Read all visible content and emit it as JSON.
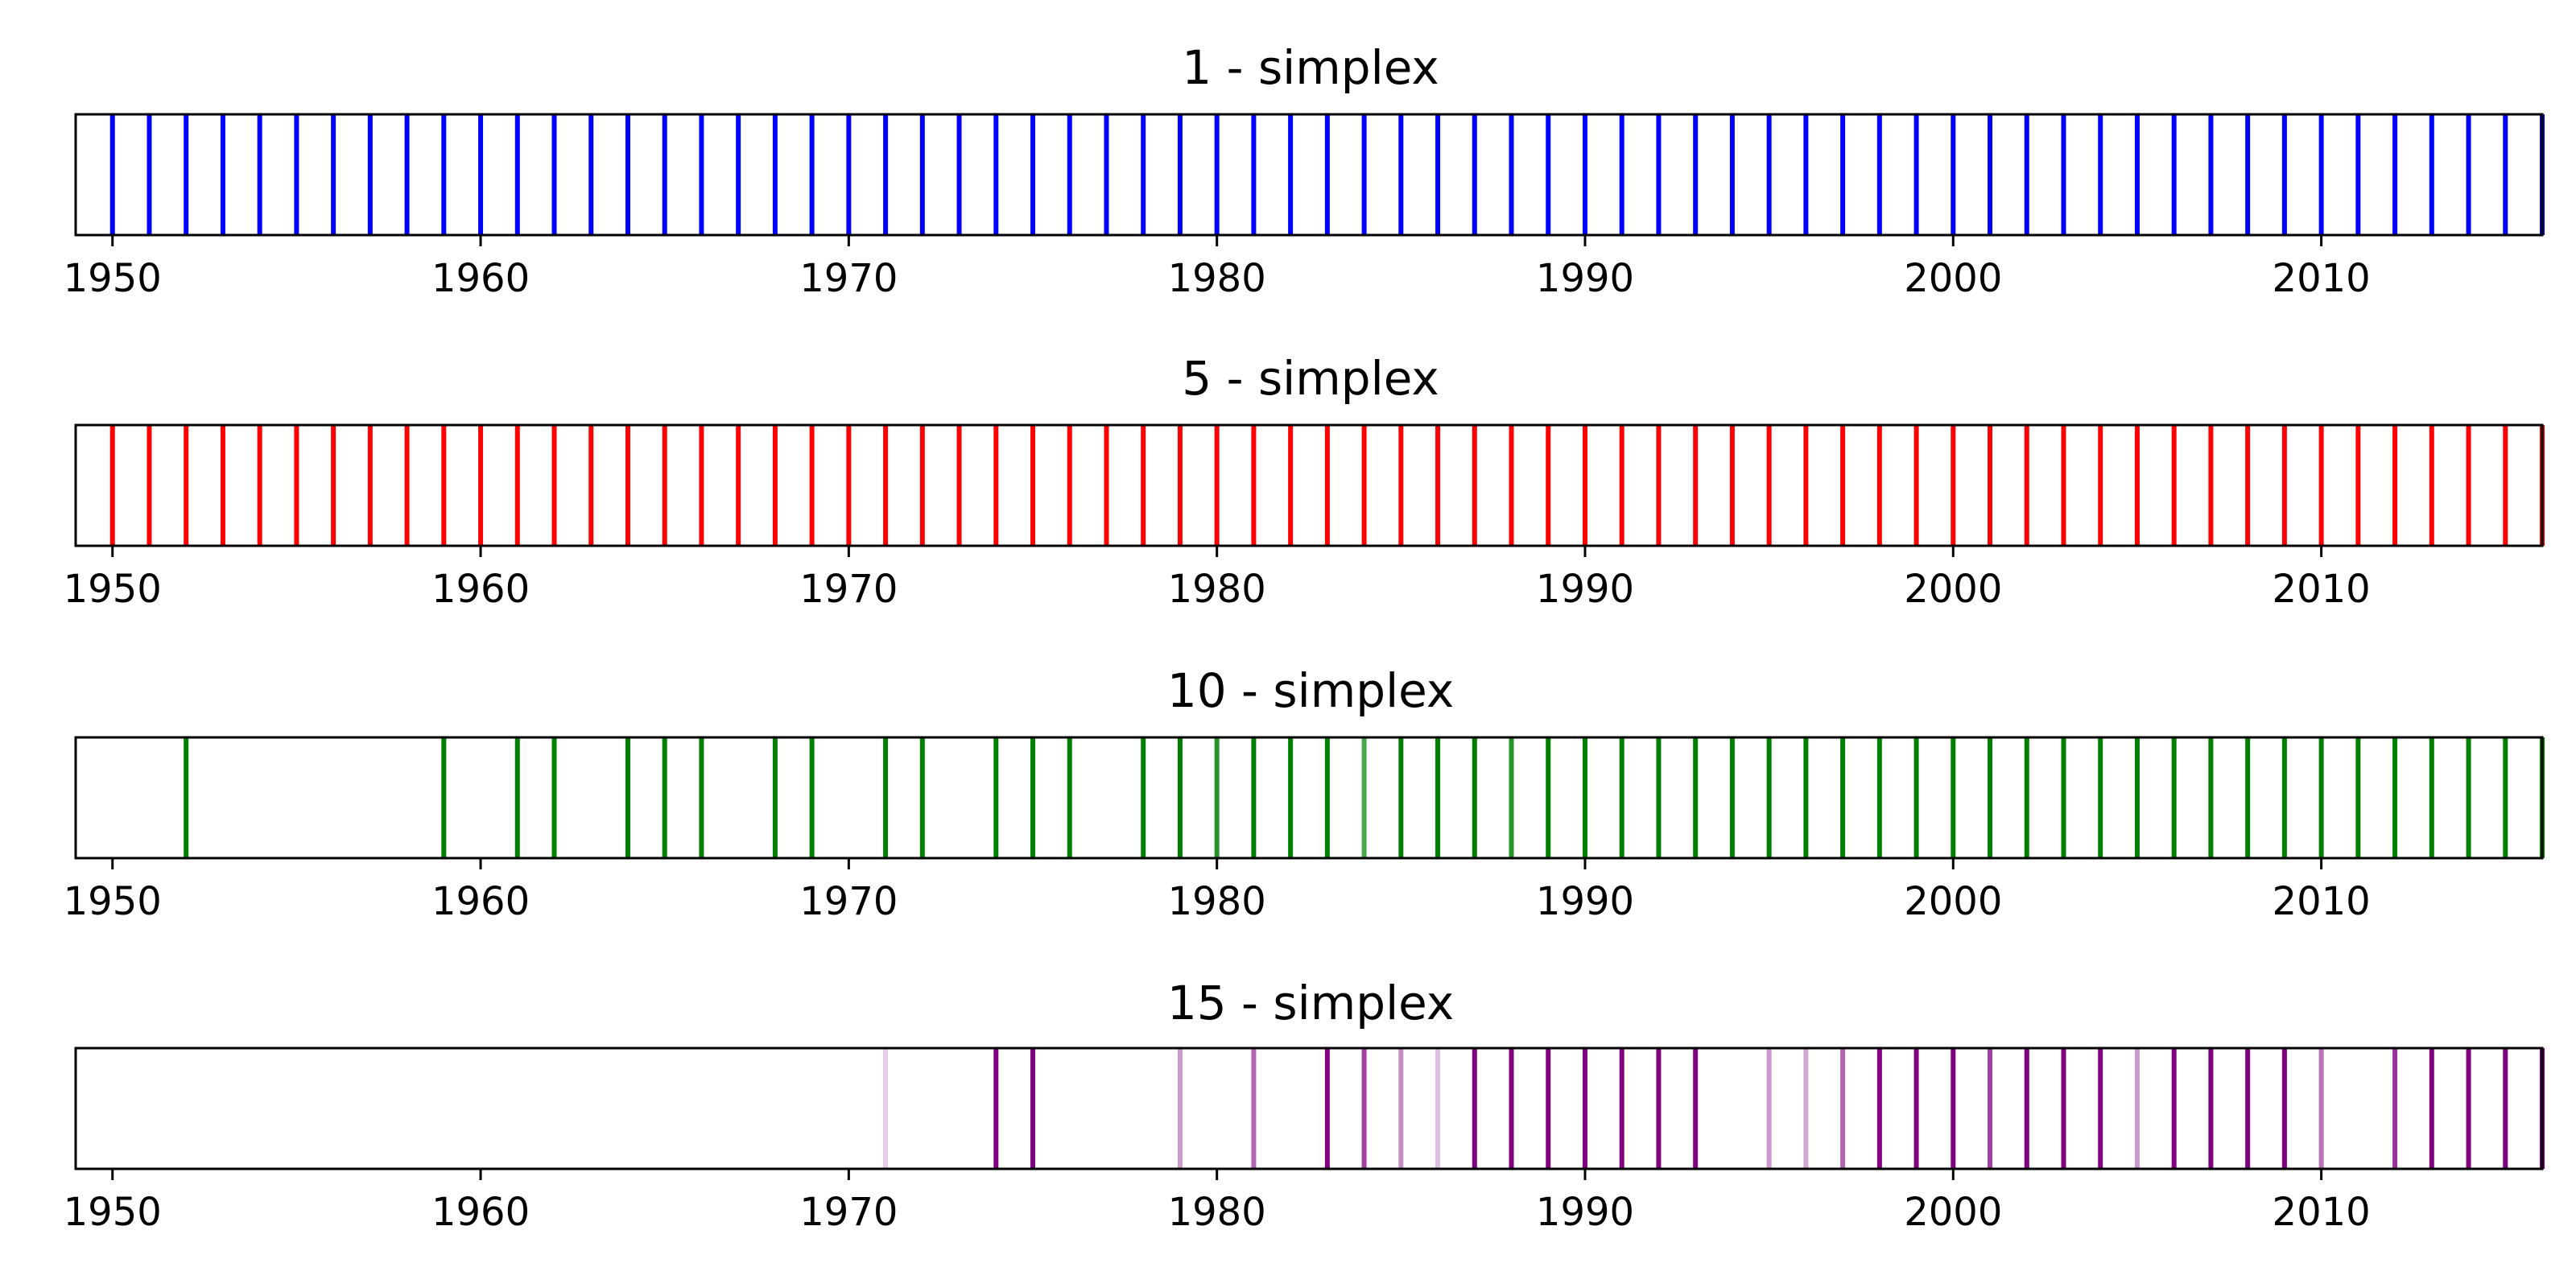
{
  "chart_data": [
    {
      "type": "event-strip",
      "title": "1 - simplex",
      "color": "#0000ff",
      "xlim": [
        1949,
        2016
      ],
      "xticks": [
        "1950",
        "1960",
        "1970",
        "1980",
        "1990",
        "2000",
        "2010"
      ],
      "events": [
        {
          "year": 1950,
          "alpha": 1
        },
        {
          "year": 1951,
          "alpha": 1
        },
        {
          "year": 1952,
          "alpha": 1
        },
        {
          "year": 1953,
          "alpha": 1
        },
        {
          "year": 1954,
          "alpha": 1
        },
        {
          "year": 1955,
          "alpha": 1
        },
        {
          "year": 1956,
          "alpha": 1
        },
        {
          "year": 1957,
          "alpha": 1
        },
        {
          "year": 1958,
          "alpha": 1
        },
        {
          "year": 1959,
          "alpha": 1
        },
        {
          "year": 1960,
          "alpha": 1
        },
        {
          "year": 1961,
          "alpha": 1
        },
        {
          "year": 1962,
          "alpha": 1
        },
        {
          "year": 1963,
          "alpha": 1
        },
        {
          "year": 1964,
          "alpha": 1
        },
        {
          "year": 1965,
          "alpha": 1
        },
        {
          "year": 1966,
          "alpha": 1
        },
        {
          "year": 1967,
          "alpha": 1
        },
        {
          "year": 1968,
          "alpha": 1
        },
        {
          "year": 1969,
          "alpha": 1
        },
        {
          "year": 1970,
          "alpha": 1
        },
        {
          "year": 1971,
          "alpha": 1
        },
        {
          "year": 1972,
          "alpha": 1
        },
        {
          "year": 1973,
          "alpha": 1
        },
        {
          "year": 1974,
          "alpha": 1
        },
        {
          "year": 1975,
          "alpha": 1
        },
        {
          "year": 1976,
          "alpha": 1
        },
        {
          "year": 1977,
          "alpha": 1
        },
        {
          "year": 1978,
          "alpha": 1
        },
        {
          "year": 1979,
          "alpha": 1
        },
        {
          "year": 1980,
          "alpha": 1
        },
        {
          "year": 1981,
          "alpha": 1
        },
        {
          "year": 1982,
          "alpha": 1
        },
        {
          "year": 1983,
          "alpha": 1
        },
        {
          "year": 1984,
          "alpha": 1
        },
        {
          "year": 1985,
          "alpha": 1
        },
        {
          "year": 1986,
          "alpha": 1
        },
        {
          "year": 1987,
          "alpha": 1
        },
        {
          "year": 1988,
          "alpha": 1
        },
        {
          "year": 1989,
          "alpha": 1
        },
        {
          "year": 1990,
          "alpha": 1
        },
        {
          "year": 1991,
          "alpha": 1
        },
        {
          "year": 1992,
          "alpha": 1
        },
        {
          "year": 1993,
          "alpha": 1
        },
        {
          "year": 1994,
          "alpha": 1
        },
        {
          "year": 1995,
          "alpha": 1
        },
        {
          "year": 1996,
          "alpha": 1
        },
        {
          "year": 1997,
          "alpha": 1
        },
        {
          "year": 1998,
          "alpha": 1
        },
        {
          "year": 1999,
          "alpha": 1
        },
        {
          "year": 2000,
          "alpha": 1
        },
        {
          "year": 2001,
          "alpha": 1
        },
        {
          "year": 2002,
          "alpha": 1
        },
        {
          "year": 2003,
          "alpha": 1
        },
        {
          "year": 2004,
          "alpha": 1
        },
        {
          "year": 2005,
          "alpha": 1
        },
        {
          "year": 2006,
          "alpha": 1
        },
        {
          "year": 2007,
          "alpha": 1
        },
        {
          "year": 2008,
          "alpha": 1
        },
        {
          "year": 2009,
          "alpha": 1
        },
        {
          "year": 2010,
          "alpha": 1
        },
        {
          "year": 2011,
          "alpha": 1
        },
        {
          "year": 2012,
          "alpha": 1
        },
        {
          "year": 2013,
          "alpha": 1
        },
        {
          "year": 2014,
          "alpha": 1
        },
        {
          "year": 2015,
          "alpha": 1
        },
        {
          "year": 2016,
          "alpha": 1
        }
      ]
    },
    {
      "type": "event-strip",
      "title": "5 - simplex",
      "color": "#ff0000",
      "xlim": [
        1949,
        2016
      ],
      "xticks": [
        "1950",
        "1960",
        "1970",
        "1980",
        "1990",
        "2000",
        "2010"
      ],
      "events": [
        {
          "year": 1950,
          "alpha": 1
        },
        {
          "year": 1951,
          "alpha": 1
        },
        {
          "year": 1952,
          "alpha": 1
        },
        {
          "year": 1953,
          "alpha": 1
        },
        {
          "year": 1954,
          "alpha": 1
        },
        {
          "year": 1955,
          "alpha": 1
        },
        {
          "year": 1956,
          "alpha": 1
        },
        {
          "year": 1957,
          "alpha": 1
        },
        {
          "year": 1958,
          "alpha": 1
        },
        {
          "year": 1959,
          "alpha": 1
        },
        {
          "year": 1960,
          "alpha": 1
        },
        {
          "year": 1961,
          "alpha": 1
        },
        {
          "year": 1962,
          "alpha": 1
        },
        {
          "year": 1963,
          "alpha": 1
        },
        {
          "year": 1964,
          "alpha": 1
        },
        {
          "year": 1965,
          "alpha": 1
        },
        {
          "year": 1966,
          "alpha": 1
        },
        {
          "year": 1967,
          "alpha": 1
        },
        {
          "year": 1968,
          "alpha": 1
        },
        {
          "year": 1969,
          "alpha": 1
        },
        {
          "year": 1970,
          "alpha": 1
        },
        {
          "year": 1971,
          "alpha": 1
        },
        {
          "year": 1972,
          "alpha": 1
        },
        {
          "year": 1973,
          "alpha": 1
        },
        {
          "year": 1974,
          "alpha": 1
        },
        {
          "year": 1975,
          "alpha": 1
        },
        {
          "year": 1976,
          "alpha": 1
        },
        {
          "year": 1977,
          "alpha": 1
        },
        {
          "year": 1978,
          "alpha": 1
        },
        {
          "year": 1979,
          "alpha": 1
        },
        {
          "year": 1980,
          "alpha": 1
        },
        {
          "year": 1981,
          "alpha": 1
        },
        {
          "year": 1982,
          "alpha": 1
        },
        {
          "year": 1983,
          "alpha": 1
        },
        {
          "year": 1984,
          "alpha": 1
        },
        {
          "year": 1985,
          "alpha": 1
        },
        {
          "year": 1986,
          "alpha": 1
        },
        {
          "year": 1987,
          "alpha": 1
        },
        {
          "year": 1988,
          "alpha": 1
        },
        {
          "year": 1989,
          "alpha": 1
        },
        {
          "year": 1990,
          "alpha": 1
        },
        {
          "year": 1991,
          "alpha": 1
        },
        {
          "year": 1992,
          "alpha": 1
        },
        {
          "year": 1993,
          "alpha": 1
        },
        {
          "year": 1994,
          "alpha": 1
        },
        {
          "year": 1995,
          "alpha": 1
        },
        {
          "year": 1996,
          "alpha": 1
        },
        {
          "year": 1997,
          "alpha": 1
        },
        {
          "year": 1998,
          "alpha": 1
        },
        {
          "year": 1999,
          "alpha": 1
        },
        {
          "year": 2000,
          "alpha": 1
        },
        {
          "year": 2001,
          "alpha": 1
        },
        {
          "year": 2002,
          "alpha": 1
        },
        {
          "year": 2003,
          "alpha": 1
        },
        {
          "year": 2004,
          "alpha": 1
        },
        {
          "year": 2005,
          "alpha": 1
        },
        {
          "year": 2006,
          "alpha": 1
        },
        {
          "year": 2007,
          "alpha": 1
        },
        {
          "year": 2008,
          "alpha": 1
        },
        {
          "year": 2009,
          "alpha": 1
        },
        {
          "year": 2010,
          "alpha": 1
        },
        {
          "year": 2011,
          "alpha": 1
        },
        {
          "year": 2012,
          "alpha": 1
        },
        {
          "year": 2013,
          "alpha": 1
        },
        {
          "year": 2014,
          "alpha": 1
        },
        {
          "year": 2015,
          "alpha": 1
        },
        {
          "year": 2016,
          "alpha": 1
        }
      ]
    },
    {
      "type": "event-strip",
      "title": "10 - simplex",
      "color": "#008000",
      "xlim": [
        1949,
        2016
      ],
      "xticks": [
        "1950",
        "1960",
        "1970",
        "1980",
        "1990",
        "2000",
        "2010"
      ],
      "events": [
        {
          "year": 1952,
          "alpha": 1
        },
        {
          "year": 1959,
          "alpha": 1
        },
        {
          "year": 1961,
          "alpha": 1
        },
        {
          "year": 1962,
          "alpha": 1
        },
        {
          "year": 1964,
          "alpha": 1
        },
        {
          "year": 1965,
          "alpha": 1
        },
        {
          "year": 1966,
          "alpha": 1
        },
        {
          "year": 1968,
          "alpha": 1
        },
        {
          "year": 1969,
          "alpha": 1
        },
        {
          "year": 1971,
          "alpha": 1
        },
        {
          "year": 1972,
          "alpha": 1
        },
        {
          "year": 1974,
          "alpha": 1
        },
        {
          "year": 1975,
          "alpha": 1
        },
        {
          "year": 1976,
          "alpha": 1
        },
        {
          "year": 1978,
          "alpha": 1
        },
        {
          "year": 1979,
          "alpha": 1
        },
        {
          "year": 1980,
          "alpha": 0.85
        },
        {
          "year": 1981,
          "alpha": 1
        },
        {
          "year": 1982,
          "alpha": 1
        },
        {
          "year": 1983,
          "alpha": 1
        },
        {
          "year": 1984,
          "alpha": 0.7
        },
        {
          "year": 1985,
          "alpha": 1
        },
        {
          "year": 1986,
          "alpha": 1
        },
        {
          "year": 1987,
          "alpha": 1
        },
        {
          "year": 1988,
          "alpha": 0.85
        },
        {
          "year": 1989,
          "alpha": 1
        },
        {
          "year": 1990,
          "alpha": 1
        },
        {
          "year": 1991,
          "alpha": 1
        },
        {
          "year": 1992,
          "alpha": 1
        },
        {
          "year": 1993,
          "alpha": 1
        },
        {
          "year": 1994,
          "alpha": 1
        },
        {
          "year": 1995,
          "alpha": 1
        },
        {
          "year": 1996,
          "alpha": 1
        },
        {
          "year": 1997,
          "alpha": 1
        },
        {
          "year": 1998,
          "alpha": 1
        },
        {
          "year": 1999,
          "alpha": 1
        },
        {
          "year": 2000,
          "alpha": 1
        },
        {
          "year": 2001,
          "alpha": 1
        },
        {
          "year": 2002,
          "alpha": 1
        },
        {
          "year": 2003,
          "alpha": 1
        },
        {
          "year": 2004,
          "alpha": 1
        },
        {
          "year": 2005,
          "alpha": 1
        },
        {
          "year": 2006,
          "alpha": 1
        },
        {
          "year": 2007,
          "alpha": 1
        },
        {
          "year": 2008,
          "alpha": 1
        },
        {
          "year": 2009,
          "alpha": 1
        },
        {
          "year": 2010,
          "alpha": 1
        },
        {
          "year": 2011,
          "alpha": 1
        },
        {
          "year": 2012,
          "alpha": 1
        },
        {
          "year": 2013,
          "alpha": 1
        },
        {
          "year": 2014,
          "alpha": 1
        },
        {
          "year": 2015,
          "alpha": 1
        },
        {
          "year": 2016,
          "alpha": 1
        }
      ]
    },
    {
      "type": "event-strip",
      "title": "15 - simplex",
      "color": "#800080",
      "xlim": [
        1949,
        2016
      ],
      "xticks": [
        "1950",
        "1960",
        "1970",
        "1980",
        "1990",
        "2000",
        "2010"
      ],
      "events": [
        {
          "year": 1971,
          "alpha": 0.2
        },
        {
          "year": 1974,
          "alpha": 1
        },
        {
          "year": 1975,
          "alpha": 1
        },
        {
          "year": 1979,
          "alpha": 0.4
        },
        {
          "year": 1981,
          "alpha": 0.6
        },
        {
          "year": 1983,
          "alpha": 1
        },
        {
          "year": 1984,
          "alpha": 0.75
        },
        {
          "year": 1985,
          "alpha": 0.45
        },
        {
          "year": 1986,
          "alpha": 0.25
        },
        {
          "year": 1987,
          "alpha": 1
        },
        {
          "year": 1988,
          "alpha": 1
        },
        {
          "year": 1989,
          "alpha": 1
        },
        {
          "year": 1990,
          "alpha": 1
        },
        {
          "year": 1991,
          "alpha": 1
        },
        {
          "year": 1992,
          "alpha": 1
        },
        {
          "year": 1993,
          "alpha": 1
        },
        {
          "year": 1995,
          "alpha": 0.4
        },
        {
          "year": 1996,
          "alpha": 0.35
        },
        {
          "year": 1997,
          "alpha": 0.6
        },
        {
          "year": 1998,
          "alpha": 1
        },
        {
          "year": 1999,
          "alpha": 1
        },
        {
          "year": 2000,
          "alpha": 1
        },
        {
          "year": 2001,
          "alpha": 0.75
        },
        {
          "year": 2002,
          "alpha": 1
        },
        {
          "year": 2003,
          "alpha": 1
        },
        {
          "year": 2004,
          "alpha": 1
        },
        {
          "year": 2005,
          "alpha": 0.4
        },
        {
          "year": 2006,
          "alpha": 1
        },
        {
          "year": 2007,
          "alpha": 1
        },
        {
          "year": 2008,
          "alpha": 1
        },
        {
          "year": 2009,
          "alpha": 1
        },
        {
          "year": 2010,
          "alpha": 0.55
        },
        {
          "year": 2012,
          "alpha": 0.8
        },
        {
          "year": 2013,
          "alpha": 1
        },
        {
          "year": 2014,
          "alpha": 1
        },
        {
          "year": 2015,
          "alpha": 1
        },
        {
          "year": 2016,
          "alpha": 1
        }
      ]
    }
  ]
}
